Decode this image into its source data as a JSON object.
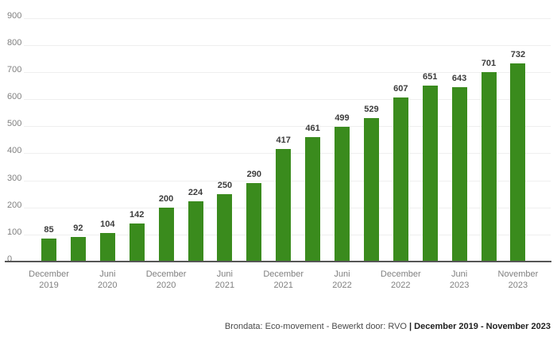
{
  "chart_data": {
    "type": "bar",
    "title": "",
    "xlabel": "",
    "ylabel": "",
    "ylim": [
      0,
      900
    ],
    "y_ticks": [
      0,
      100,
      200,
      300,
      400,
      500,
      600,
      700,
      800,
      900
    ],
    "grid": "horizontal",
    "legend": "none",
    "bar_color": "#3a8b1d",
    "value_label_color": "#3c3c3c",
    "axis_label_color": "#808080",
    "gridline_color": "#efefef",
    "axis_line_color": "#565656",
    "bars": [
      {
        "value": 85,
        "tick": [
          "December",
          "2019"
        ]
      },
      {
        "value": 92
      },
      {
        "value": 104,
        "tick": [
          "Juni",
          "2020"
        ]
      },
      {
        "value": 142
      },
      {
        "value": 200,
        "tick": [
          "December",
          "2020"
        ]
      },
      {
        "value": 224
      },
      {
        "value": 250,
        "tick": [
          "Juni",
          "2021"
        ]
      },
      {
        "value": 290
      },
      {
        "value": 417,
        "tick": [
          "December",
          "2021"
        ]
      },
      {
        "value": 461
      },
      {
        "value": 499,
        "tick": [
          "Juni",
          "2022"
        ]
      },
      {
        "value": 529
      },
      {
        "value": 607,
        "tick": [
          "December",
          "2022"
        ]
      },
      {
        "value": 651
      },
      {
        "value": 643,
        "tick": [
          "Juni",
          "2023"
        ]
      },
      {
        "value": 701
      },
      {
        "value": 732,
        "tick": [
          "November",
          "2023"
        ]
      }
    ]
  },
  "footer": {
    "source_text": "Brondata: Eco-movement - Bewerkt door: RVO ",
    "period_text": "| December 2019 - November 2023"
  }
}
